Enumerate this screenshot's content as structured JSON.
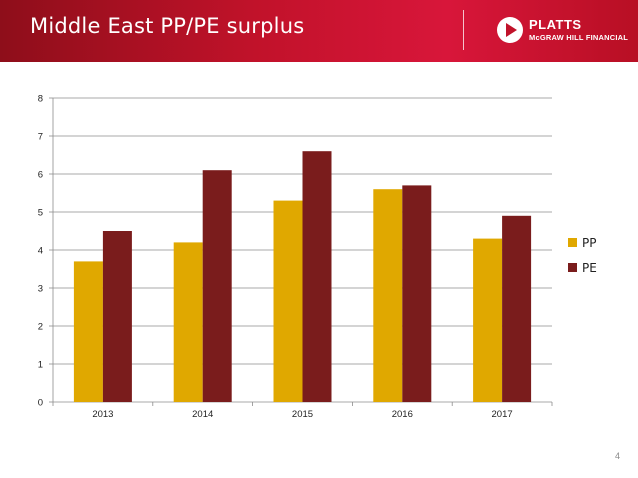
{
  "slide": {
    "title": "Middle East PP/PE surplus",
    "page_number": "4"
  },
  "brand": {
    "name": "PLATTS",
    "subtitle": "McGRAW HILL FINANCIAL",
    "banner_colors": [
      "#8e0e1a",
      "#d8163a"
    ]
  },
  "chart_data": {
    "type": "bar",
    "title": "",
    "xlabel": "",
    "ylabel": "",
    "categories": [
      "2013",
      "2014",
      "2015",
      "2016",
      "2017"
    ],
    "series": [
      {
        "name": "PP",
        "values": [
          3.7,
          4.2,
          5.3,
          5.6,
          4.3
        ],
        "color": "#e0a800"
      },
      {
        "name": "PE",
        "values": [
          4.5,
          6.1,
          6.6,
          5.7,
          4.9
        ],
        "color": "#7a1c1c"
      }
    ],
    "ylim": [
      0,
      8
    ],
    "yticks": [
      0,
      1,
      2,
      3,
      4,
      5,
      6,
      7,
      8
    ],
    "grid": true,
    "legend_position": "right"
  }
}
